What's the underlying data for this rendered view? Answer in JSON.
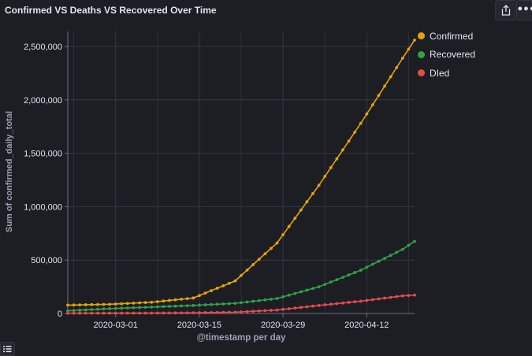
{
  "panel": {
    "title": "Confirmed VS Deaths VS Recovered Over Time",
    "share_icon": "share-icon",
    "more_icon": "more-options-icon",
    "legend_toggle_icon": "legend-list-icon"
  },
  "colors": {
    "background": "#1d1e24",
    "grid": "#343741",
    "axis": "#6a717d",
    "text": "#dfe5ef",
    "confirmed": "#e7a300",
    "recovered": "#2fa14a",
    "died": "#e7494d"
  },
  "legend": [
    {
      "label": "Confirmed",
      "color": "#e7a300"
    },
    {
      "label": "Recovered",
      "color": "#2fa14a"
    },
    {
      "label": "DIed",
      "color": "#e7494d"
    }
  ],
  "chart_data": {
    "type": "line",
    "title": "Confirmed VS Deaths VS Recovered Over Time",
    "xlabel": "@timestamp per day",
    "ylabel": "Sum of confirmed_daily_total",
    "x_start": "2020-02-22",
    "x_end": "2020-04-20",
    "x_ticks": [
      "2020-03-01",
      "2020-03-15",
      "2020-03-29",
      "2020-04-12"
    ],
    "y_ticks": [
      "0",
      "500,000",
      "1,000,000",
      "1,500,000",
      "2,000,000",
      "2,500,000"
    ],
    "ylim": [
      0,
      2640000
    ],
    "grid": true,
    "legend_position": "right",
    "x": [
      "2020-02-22",
      "2020-02-29",
      "2020-03-07",
      "2020-03-14",
      "2020-03-21",
      "2020-03-28",
      "2020-04-04",
      "2020-04-11",
      "2020-04-18",
      "2020-04-20"
    ],
    "series": [
      {
        "name": "Confirmed",
        "color": "#e7a300",
        "values": [
          78000,
          86000,
          105000,
          145000,
          305000,
          660000,
          1200000,
          1780000,
          2390000,
          2560000
        ]
      },
      {
        "name": "Recovered",
        "color": "#2fa14a",
        "values": [
          25000,
          45000,
          60000,
          75000,
          95000,
          140000,
          250000,
          405000,
          600000,
          675000
        ]
      },
      {
        "name": "DIed",
        "color": "#e7494d",
        "values": [
          2000,
          3000,
          3500,
          6000,
          12000,
          32000,
          75000,
          115000,
          165000,
          172000
        ]
      }
    ]
  }
}
